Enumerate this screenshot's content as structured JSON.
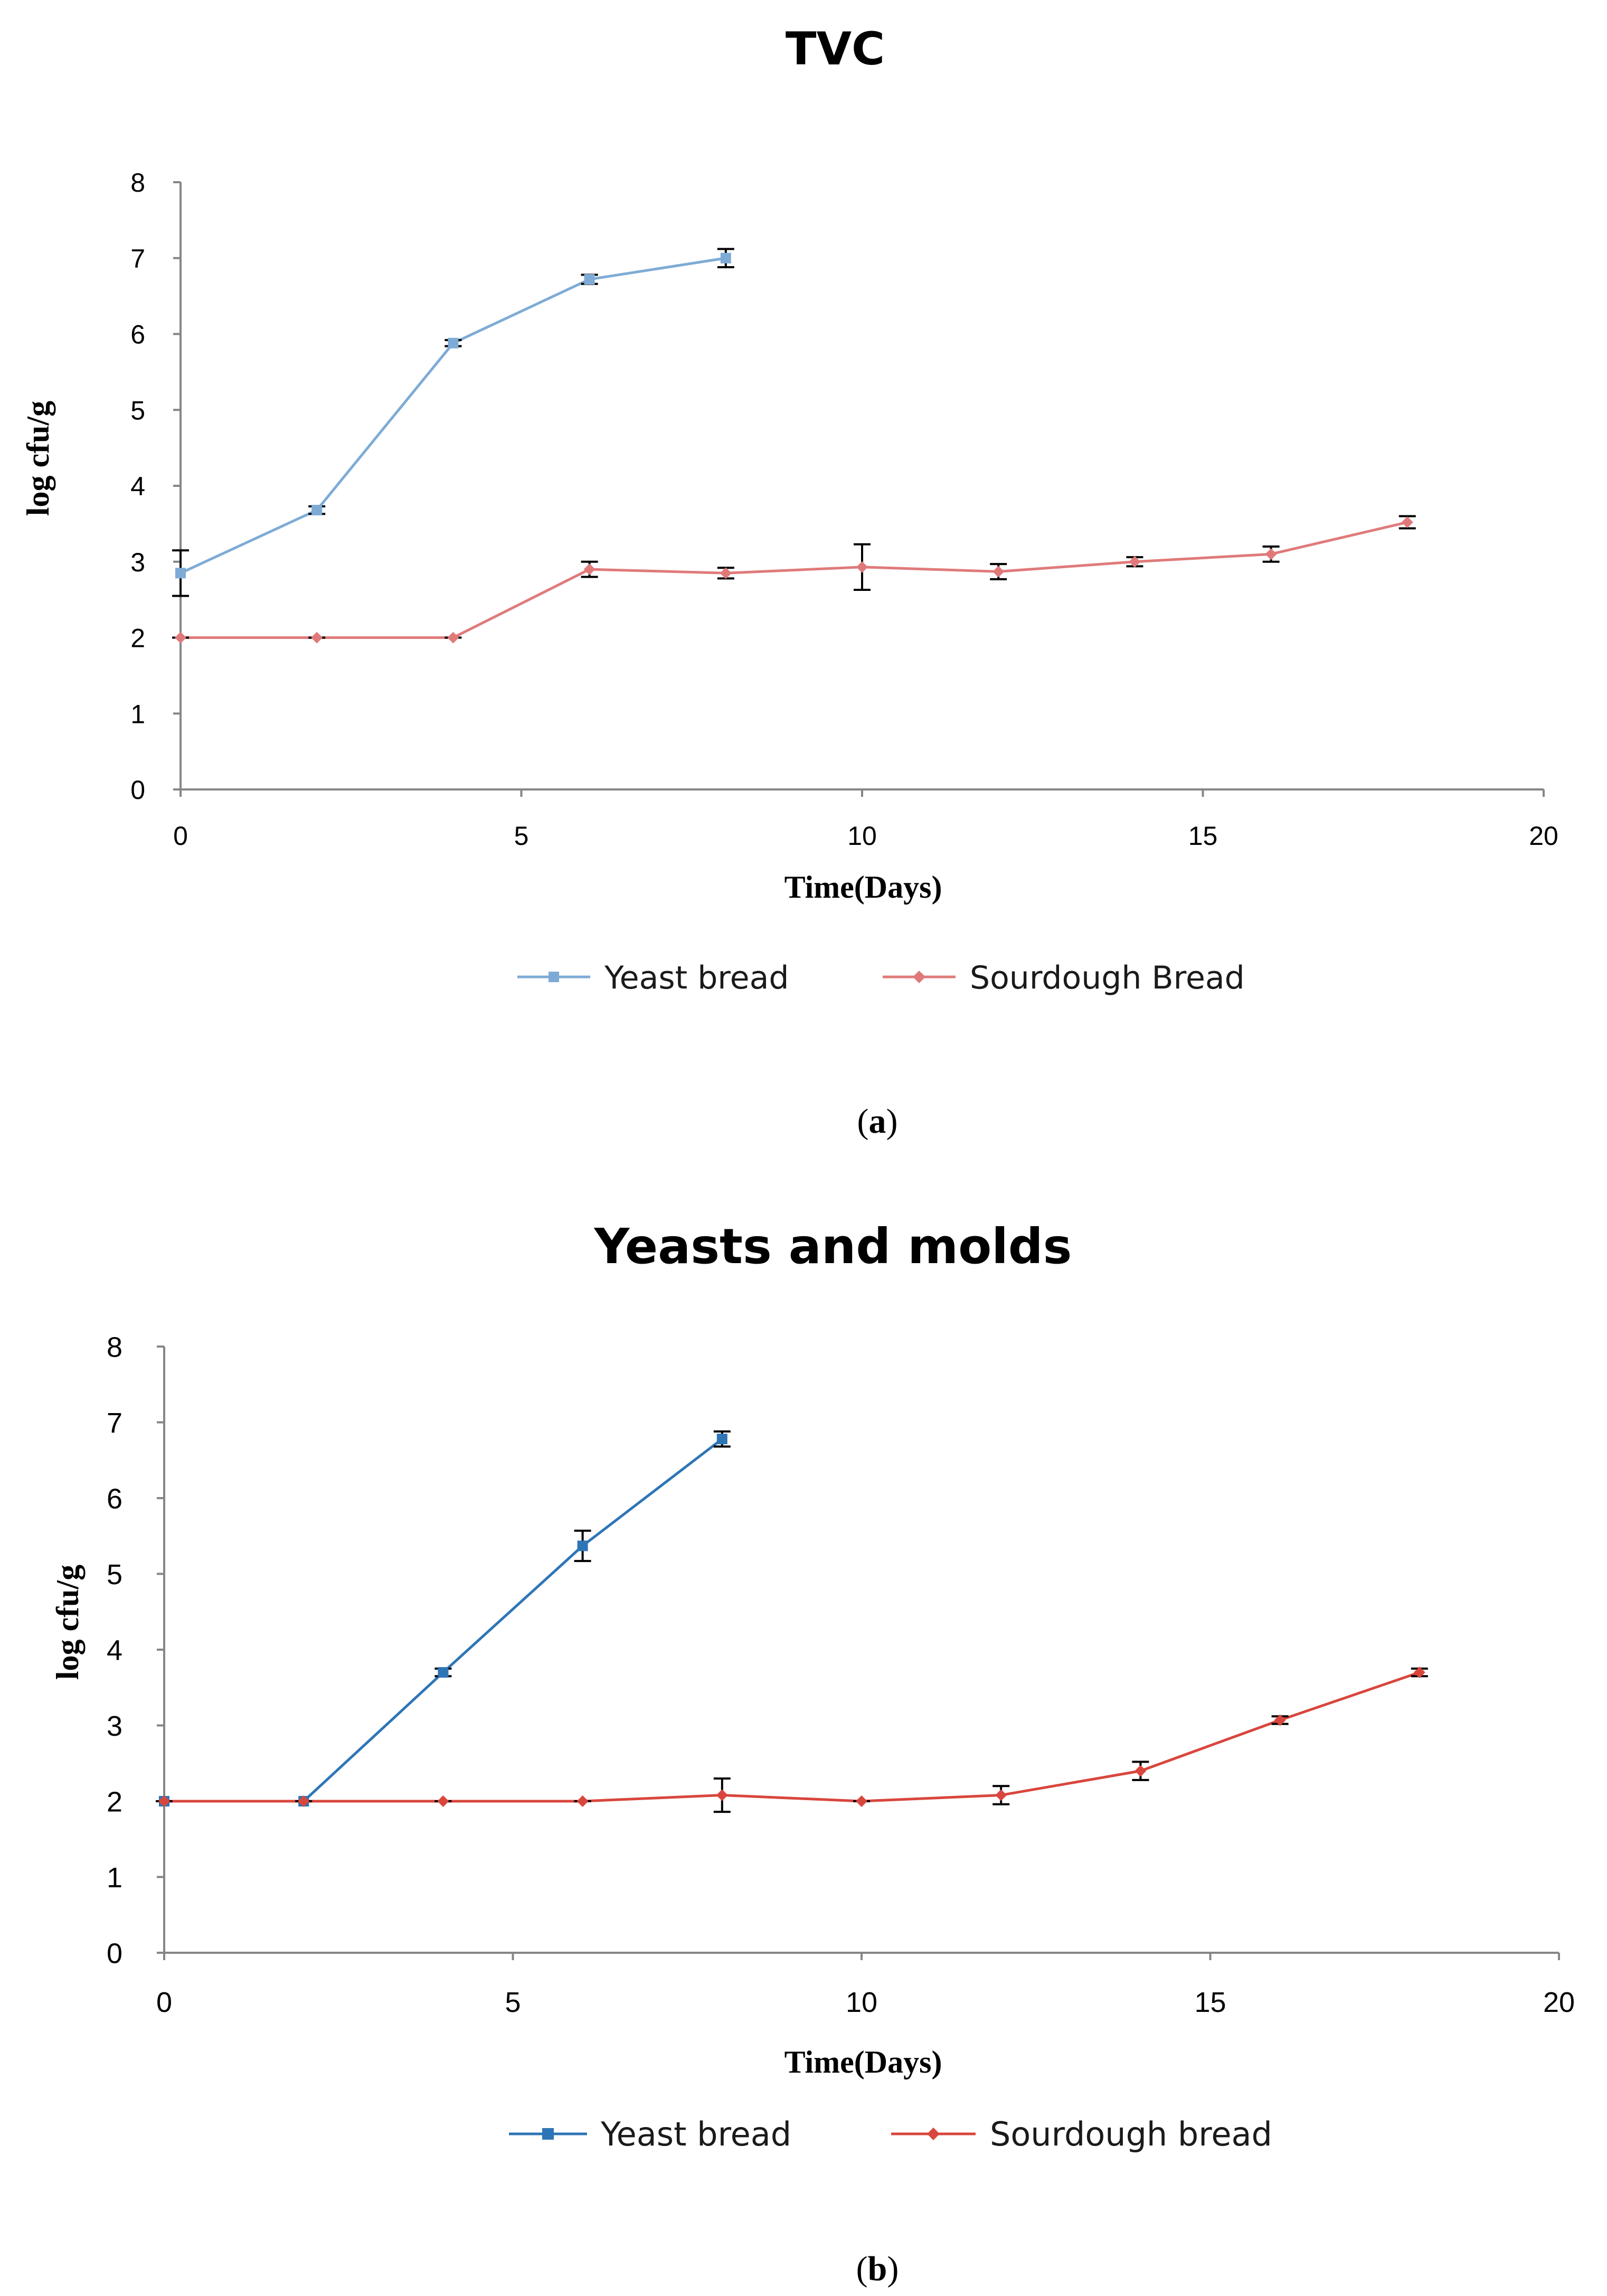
{
  "chart_data": [
    {
      "type": "line",
      "title": "TVC",
      "xlabel": "Time(Days)",
      "ylabel": "log cfu/g",
      "xlim": [
        0,
        20
      ],
      "ylim": [
        0,
        8
      ],
      "xticks": [
        "0",
        "5",
        "10",
        "15",
        "20"
      ],
      "yticks": [
        "0",
        "1",
        "2",
        "3",
        "4",
        "5",
        "6",
        "7",
        "8"
      ],
      "grid": false,
      "legend_position": "bottom",
      "caption": {
        "open": "(",
        "letter": "a",
        "close": ")"
      },
      "series": [
        {
          "name": "Yeast bread",
          "color": "#7eabd6",
          "marker": "square",
          "x": [
            0,
            2,
            4,
            6,
            8
          ],
          "y": [
            2.85,
            3.68,
            5.88,
            6.72,
            7.0
          ],
          "err": [
            0.3,
            0.05,
            0.04,
            0.06,
            0.12
          ]
        },
        {
          "name": "Sourdough Bread",
          "color": "#e07a7a",
          "marker": "diamond",
          "x": [
            0,
            2,
            4,
            6,
            8,
            10,
            12,
            14,
            16,
            18
          ],
          "y": [
            2.0,
            2.0,
            2.0,
            2.9,
            2.85,
            2.93,
            2.87,
            3.0,
            3.1,
            3.52
          ],
          "err": [
            0.0,
            0.0,
            0.0,
            0.1,
            0.07,
            0.3,
            0.1,
            0.06,
            0.1,
            0.08
          ]
        }
      ]
    },
    {
      "type": "line",
      "title": "Yeasts and molds",
      "xlabel": "Time(Days)",
      "ylabel": "log cfu/g",
      "xlim": [
        0,
        20
      ],
      "ylim": [
        0,
        8
      ],
      "xticks": [
        "0",
        "5",
        "10",
        "15",
        "20"
      ],
      "yticks": [
        "0",
        "1",
        "2",
        "3",
        "4",
        "5",
        "6",
        "7",
        "8"
      ],
      "grid": false,
      "legend_position": "bottom",
      "caption": {
        "open": "(",
        "letter": "b",
        "close": ")"
      },
      "series": [
        {
          "name": "Yeast bread",
          "color": "#2e75b6",
          "marker": "square",
          "x": [
            0,
            2,
            4,
            6,
            8
          ],
          "y": [
            2.0,
            2.0,
            3.7,
            5.37,
            6.78
          ],
          "err": [
            0.0,
            0.0,
            0.05,
            0.2,
            0.1
          ]
        },
        {
          "name": "Sourdough bread",
          "color": "#d9463d",
          "marker": "diamond",
          "x": [
            0,
            2,
            4,
            6,
            8,
            10,
            12,
            14,
            16,
            18
          ],
          "y": [
            2.0,
            2.0,
            2.0,
            2.0,
            2.08,
            2.0,
            2.08,
            2.4,
            3.07,
            3.7
          ],
          "err": [
            0.0,
            0.0,
            0.0,
            0.0,
            0.22,
            0.0,
            0.12,
            0.12,
            0.05,
            0.05
          ]
        }
      ]
    }
  ]
}
